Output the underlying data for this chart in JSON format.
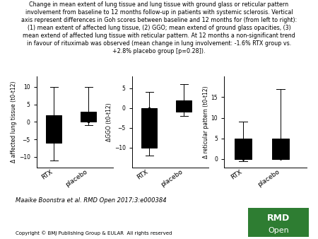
{
  "title": "Change in mean extent of lung tissue and lung tissue with ground glass or reticular pattern\ninvolvement from baseline to 12 months follow-up in patients with systemic sclerosis. Vertical\naxis represent differences in Goh scores between baseline and 12 months for (from left to right):\n(1) mean extent of affected lung tissue, (2) GGO; mean extend of ground glass opacities, (3)\nmean extend of affected lung tissue with reticular pattern. At 12 months a non-significant trend\nin favour of rituximab was observed (mean change in lung involvement: -1.6% RTX group vs.\n+2.8% placebo group [p=0.28]).",
  "subtitle": "Maaike Boonstra et al. RMD Open 2017;3:e000384",
  "copyright": "Copyright © BMJ Publishing Group & EULAR  All rights reserved",
  "plots": [
    {
      "ylabel": "Δ affected lung tissue (t0-t12)",
      "ylim": [
        -13,
        13
      ],
      "yticks": [
        -10,
        -5,
        0,
        5,
        10
      ],
      "rtx": {
        "med": 0,
        "q1": -6,
        "q3": 2,
        "whislo": -11,
        "whishi": 10,
        "fliers": [
          0,
          0,
          0
        ]
      },
      "placebo": {
        "med": 1,
        "q1": 0,
        "q3": 3,
        "whislo": -1,
        "whishi": 10,
        "fliers": [
          0.5,
          0,
          0,
          0,
          0,
          0,
          0,
          0
        ]
      }
    },
    {
      "ylabel": "ΔGGO (t0-t12)",
      "ylim": [
        -15,
        8
      ],
      "yticks": [
        -10,
        -5,
        0,
        5
      ],
      "rtx": {
        "med": 0,
        "q1": -10,
        "q3": 0,
        "whislo": -12,
        "whishi": 4,
        "fliers": [
          0,
          0,
          0,
          0,
          0,
          0,
          0
        ]
      },
      "placebo": {
        "med": 0,
        "q1": -1,
        "q3": 2,
        "whislo": -2,
        "whishi": 6,
        "fliers": [
          0,
          0,
          0,
          0,
          0,
          0,
          0
        ]
      }
    },
    {
      "ylabel": "Δ reticular pattern (t0-t12)",
      "ylim": [
        -2,
        20
      ],
      "yticks": [
        0,
        5,
        10,
        15
      ],
      "rtx": {
        "med": 0,
        "q1": 0,
        "q3": 5,
        "whislo": -0.5,
        "whishi": 9,
        "fliers": [
          0.5,
          0,
          0,
          0,
          0,
          0,
          0,
          0
        ]
      },
      "placebo": {
        "med": 0,
        "q1": 0,
        "q3": 5,
        "whislo": 0,
        "whishi": 17,
        "fliers": [
          1,
          2,
          3,
          3,
          0
        ]
      }
    }
  ],
  "box_colors": {
    "rtx": "white",
    "placebo": "#c8c8c8"
  },
  "flier_color": "black",
  "xlabel_rtx": "RTX",
  "xlabel_placebo": "placebo",
  "background_color": "white",
  "title_fontsize": 5.8,
  "axis_fontsize": 5.5,
  "tick_fontsize": 5.5,
  "xlabel_fontsize": 6.5,
  "subtitle_fontsize": 6,
  "copyright_fontsize": 5
}
